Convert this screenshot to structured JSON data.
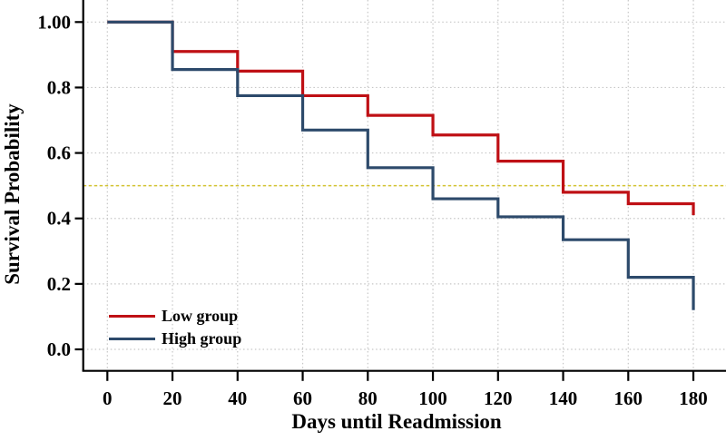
{
  "figure": {
    "background": "#ffffff",
    "text_color": "#000000",
    "grid_color": "#c6c6c6",
    "axis_color": "#000000"
  },
  "legend": {
    "position": "lower-left",
    "items": [
      {
        "label": "Low group",
        "color": "#bf1015"
      },
      {
        "label": "High group",
        "color": "#2d4a6b"
      }
    ]
  },
  "chart_data": {
    "type": "line",
    "subtype": "kaplan-meier-step",
    "title": "",
    "xlabel": "Days until Readmission",
    "ylabel": "Survival Probability",
    "x_ticks": [
      0,
      20,
      40,
      60,
      80,
      100,
      120,
      140,
      160,
      180
    ],
    "x_tick_labels": [
      "0",
      "20",
      "40",
      "60",
      "80",
      "100",
      "120",
      "140",
      "160",
      "180"
    ],
    "y_ticks": [
      0.0,
      0.2,
      0.4,
      0.6,
      0.8,
      1.0
    ],
    "y_tick_labels": [
      "0.0",
      "0.2",
      "0.4",
      "0.6",
      "0.8",
      "1.00"
    ],
    "xlim": [
      0,
      190
    ],
    "ylim": [
      0,
      1.07
    ],
    "grid": true,
    "reference_line": {
      "y": 0.5,
      "color": "#d2c332",
      "style": "dashed"
    },
    "x": [
      0,
      20,
      40,
      60,
      80,
      100,
      120,
      140,
      160,
      180
    ],
    "series": [
      {
        "name": "Low group",
        "color": "#bf1015",
        "values": [
          1.0,
          0.91,
          0.85,
          0.775,
          0.715,
          0.655,
          0.575,
          0.48,
          0.445,
          0.41
        ]
      },
      {
        "name": "High group",
        "color": "#2d4a6b",
        "values": [
          1.0,
          0.855,
          0.775,
          0.67,
          0.555,
          0.46,
          0.405,
          0.335,
          0.22,
          0.12
        ]
      }
    ]
  }
}
